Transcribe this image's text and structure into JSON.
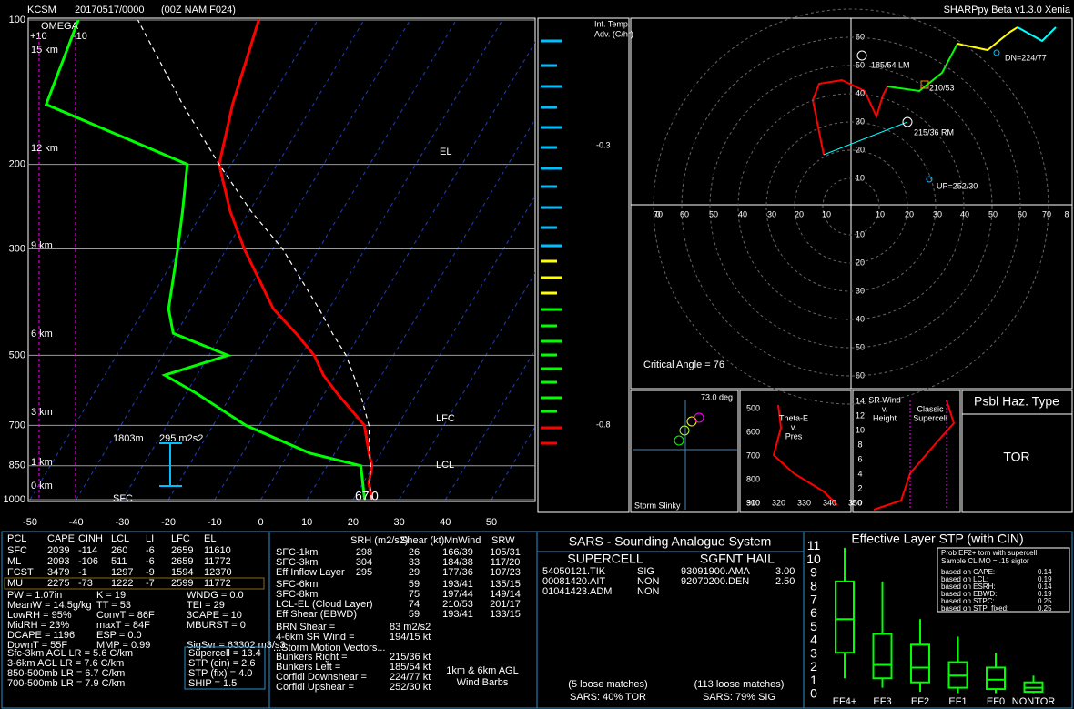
{
  "header": {
    "station": "KCSM",
    "run": "20170517/0000",
    "model": "(00Z  NAM  F024)",
    "version": "SHARPpy Beta v1.3.0 Xenia"
  },
  "chart_data": [
    {
      "type": "skewt",
      "y": [
        1000,
        925,
        850,
        800,
        700,
        600,
        550,
        500,
        450,
        400,
        300,
        250,
        200,
        150,
        100
      ],
      "series": [
        {
          "color": "#ff0000",
          "values": [
            24.1,
            21.3,
            19.7,
            17.4,
            12.8,
            2.7,
            -2.6,
            -7.2,
            -14.0,
            -22.1,
            -36.2,
            -44.2,
            -52.6,
            -57.5,
            -62.8
          ]
        },
        {
          "color": "#00ff00",
          "values": [
            22.5,
            20.0,
            17.3,
            4.6,
            -12.9,
            -27.8,
            -37.0,
            -25.9,
            -40.6,
            -44.8,
            -50.6,
            -54.5,
            -59.5,
            -97.9,
            -101.9
          ]
        },
        {
          "color": "#ffffff",
          "dash": true,
          "values": [
            24.0,
            21.5,
            19.4,
            17.5,
            13.8,
            7.7,
            3.9,
            -0.3,
            -6.1,
            -12.2,
            -27.9,
            -39.7,
            -52.6,
            -68.3,
            -89.0
          ]
        }
      ],
      "ylim": [
        1000,
        100
      ],
      "ylog": true,
      "yticks": [
        100,
        200,
        300,
        500,
        700,
        850,
        1000
      ],
      "xlim": [
        -50,
        50
      ],
      "xticks": [
        -50,
        -40,
        -30,
        -20,
        -10,
        0,
        10,
        20,
        30,
        40,
        50
      ],
      "grid": true
    },
    {
      "type": "box",
      "title": "Effective Layer STP (with CIN)",
      "categories": [
        "EF4+",
        "EF3",
        "EF2",
        "EF1",
        "EF0",
        "NONTOR"
      ],
      "series": [
        {
          "color": "#00ff00",
          "whislo": [
            1.2,
            0.5,
            0.2,
            0.1,
            0.1,
            0.1
          ],
          "q1": [
            3.1,
            1.2,
            0.9,
            0.5,
            0.4,
            0.2
          ],
          "med": [
            5.6,
            2.2,
            2.0,
            1.4,
            1.1,
            0.5
          ],
          "q3": [
            8.4,
            4.5,
            3.7,
            2.4,
            2.0,
            0.9
          ],
          "whishi": [
            10.9,
            8.4,
            5.6,
            4.3,
            3.1,
            1.4
          ]
        }
      ],
      "ylim": [
        0,
        11.3
      ],
      "yticks": [
        0,
        1,
        2,
        3,
        4,
        5,
        6,
        7,
        8,
        9,
        10,
        11
      ]
    }
  ],
  "skewt_labels": {
    "omega": "OMEGA",
    "omega_ticks": [
      "+10",
      "-10"
    ],
    "heights": [
      "15 km",
      "12 km",
      "9 km",
      "6 km",
      "3 km",
      "1 km",
      "0 km"
    ],
    "el": "EL",
    "lfc": "LFC",
    "lcl": "LCL",
    "eff_depth": "1803m",
    "eff_srh": "295 m2s2",
    "sfc": "SFC",
    "sfc_td": "67",
    "sfc_t": "0"
  },
  "advection": {
    "title": [
      "Inf. Temp.",
      "Adv. (C/hr)"
    ],
    "labels": [
      "-0.3",
      "-0.8"
    ]
  },
  "hodograph": {
    "up_labels": [
      10,
      20,
      30,
      40,
      50,
      60
    ],
    "down_labels": [
      10,
      20,
      30,
      40,
      50,
      60
    ],
    "row_labels": [
      "0",
      "70",
      "60",
      "50",
      "40",
      "30",
      "20",
      "10",
      "10",
      "20",
      "30",
      "40",
      "50",
      "60",
      "70",
      "8"
    ],
    "lm": "185/54 LM",
    "mean": "210/53",
    "rm": "215/36 RM",
    "dn": "DN=224/77",
    "up": "UP=252/30",
    "critical": "Critical Angle = 76"
  },
  "slinky": {
    "angle": "73.0 deg",
    "title": "Storm Slinky"
  },
  "theta_e": {
    "title": [
      "Theta-E",
      "v.",
      "Pres"
    ],
    "y_labels": [
      "500",
      "600",
      "700",
      "800",
      "900"
    ],
    "x_labels": [
      "310",
      "320",
      "330",
      "340",
      "350"
    ]
  },
  "sr_wind": {
    "title": [
      "SR Wind",
      "v.",
      "Height"
    ],
    "note": [
      "Classic",
      "Supercell"
    ],
    "y_labels": [
      "14",
      "12",
      "10",
      "8",
      "6",
      "4",
      "2",
      "0"
    ]
  },
  "hazard": {
    "title": "Psbl Haz. Type",
    "value": "TOR"
  },
  "parcels": {
    "header": [
      "PCL",
      "CAPE",
      "CINH",
      "LCL",
      "LI",
      "LFC",
      "EL"
    ],
    "rows": [
      [
        "SFC",
        "2039",
        "-114",
        "260",
        "-6",
        "2659",
        "11610"
      ],
      [
        "ML",
        "2093",
        "-106",
        "511",
        "-6",
        "2659",
        "11772"
      ],
      [
        "FCST",
        "3479",
        "-1",
        "1297",
        "-9",
        "1594",
        "12370"
      ],
      [
        "MU",
        "2275",
        "-73",
        "1222",
        "-7",
        "2599",
        "11772"
      ]
    ]
  },
  "indices": [
    [
      "PW = 1.07in",
      "K = 19",
      "WNDG = 0.0"
    ],
    [
      "MeanW = 14.5g/kg",
      "TT = 53",
      "TEI = 29"
    ],
    [
      "LowRH = 95%",
      "ConvT = 86F",
      "3CAPE = 10"
    ],
    [
      "MidRH = 23%",
      "maxT = 84F",
      "MBURST = 0"
    ],
    [
      "DCAPE = 1196",
      "ESP = 0.0"
    ],
    [
      "DownT = 55F",
      "MMP = 0.99",
      "SigSvr = 63302 m3/s3"
    ]
  ],
  "lapse_rates": [
    "Sfc-3km AGL LR = 5.6 C/km",
    "3-6km AGL LR = 7.6 C/km",
    "850-500mb LR = 6.7 C/km",
    "700-500mb LR = 7.9 C/km"
  ],
  "composites": [
    "Supercell = 13.4",
    "STP (cin) = 2.6",
    "STP (fix) = 4.0",
    "SHIP = 1.5"
  ],
  "kinematics": {
    "header": [
      "SRH (m2/s2)",
      "Shear (kt)",
      "MnWind",
      "SRW"
    ],
    "rows": [
      [
        "SFC-1km",
        "298",
        "26",
        "166/39",
        "105/31"
      ],
      [
        "SFC-3km",
        "304",
        "33",
        "184/38",
        "117/20"
      ],
      [
        "Eff Inflow Layer",
        "295",
        "29",
        "177/36",
        "107/23"
      ],
      [
        "SFC-6km",
        null,
        "59",
        "193/41",
        "135/15"
      ],
      [
        "SFC-8km",
        null,
        "75",
        "197/44",
        "149/14"
      ],
      [
        "LCL-EL (Cloud Layer)",
        null,
        "74",
        "210/53",
        "201/17"
      ],
      [
        "Eff Shear (EBWD)",
        null,
        "59",
        "193/41",
        "133/15"
      ]
    ],
    "extra": [
      [
        "BRN Shear =",
        "83 m2/s2"
      ],
      [
        "4-6km SR Wind =",
        "194/15 kt"
      ]
    ],
    "motion_title": "...Storm Motion Vectors...",
    "motion": [
      [
        "Bunkers Right =",
        "215/36 kt"
      ],
      [
        "Bunkers Left =",
        "185/54 kt"
      ],
      [
        "Corfidi Downshear =",
        "224/77 kt"
      ],
      [
        "Corfidi Upshear =",
        "252/30 kt"
      ]
    ],
    "barb_note": [
      "1km & 6km AGL",
      "Wind Barbs"
    ]
  },
  "sars": {
    "title": "SARS - Sounding Analogue System",
    "supercell_title": "SUPERCELL",
    "hail_title": "SGFNT HAIL",
    "supercell": [
      [
        "54050121.TIK",
        "SIG"
      ],
      [
        "00081420.AIT",
        "NON"
      ],
      [
        "01041423.ADM",
        "NON"
      ]
    ],
    "hail": [
      [
        "93091900.AMA",
        "3.00"
      ],
      [
        "92070200.DEN",
        "2.50"
      ]
    ],
    "supercell_matches": "(5 loose matches)",
    "supercell_result": "SARS: 40% TOR",
    "hail_matches": "(113 loose matches)",
    "hail_result": "SARS: 79% SIG"
  },
  "stp_legend": {
    "title": [
      "Prob EF2+ torn with supercell",
      "Sample CLIMO = .15 sigtor"
    ],
    "rows": [
      [
        "based on CAPE:",
        "0.14"
      ],
      [
        "based on LCL:",
        "0.19"
      ],
      [
        "based on ESRH:",
        "0.14"
      ],
      [
        "based on EBWD:",
        "0.19"
      ],
      [
        "based on STPC:",
        "0.25"
      ],
      [
        "based on STP_fixed:",
        "0.25"
      ]
    ]
  }
}
